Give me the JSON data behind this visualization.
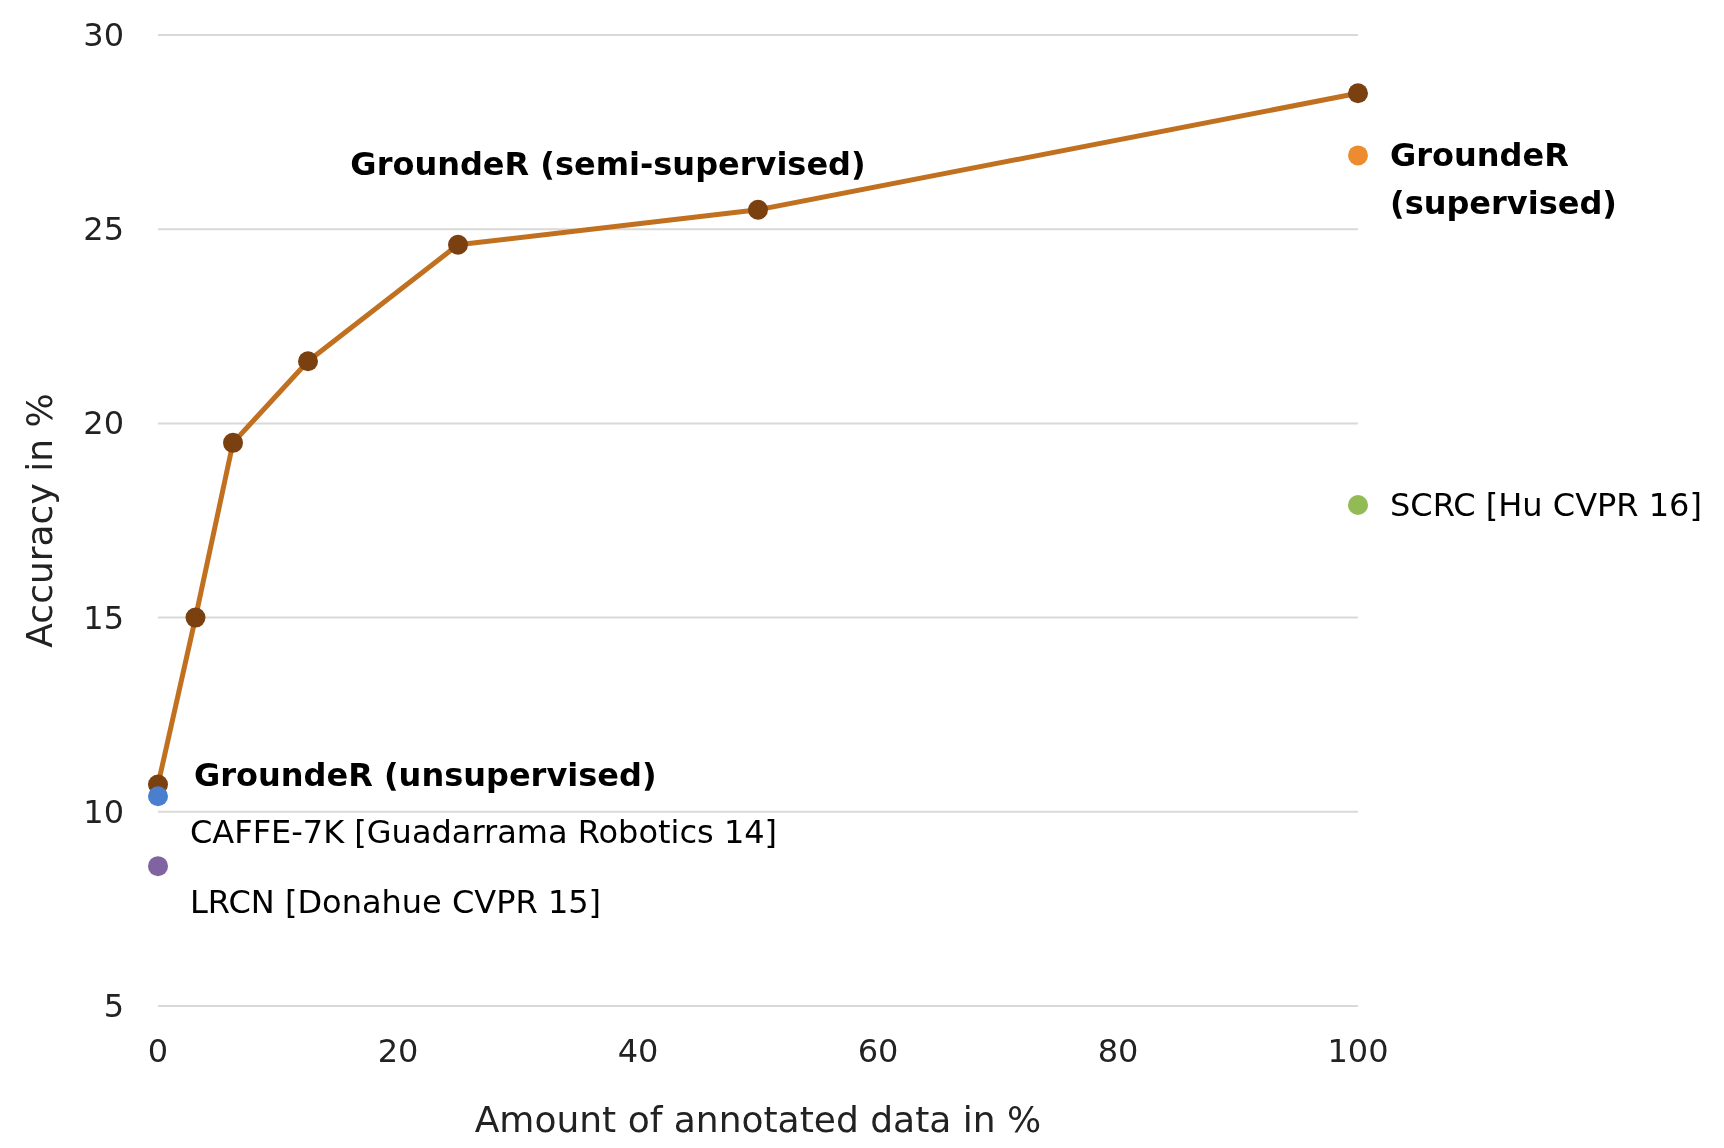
{
  "chart_data": {
    "type": "line",
    "xlabel": "Amount of annotated data in %",
    "ylabel": "Accuracy in %",
    "xlim": [
      0,
      100
    ],
    "ylim": [
      5,
      30
    ],
    "xticks": [
      0,
      20,
      40,
      60,
      80,
      100
    ],
    "yticks": [
      5,
      10,
      15,
      20,
      25,
      30
    ],
    "grid": "y",
    "marker": "circle",
    "line_style": "solid",
    "series": [
      {
        "name": "GroundeR (semi-supervised)",
        "color": "#c0701f",
        "colors": [
          "#7a4010",
          "#7a4010",
          "#7a4010",
          "#7a4010",
          "#7a4010",
          "#7a4010",
          "#7a4010"
        ],
        "x": [
          0,
          3.125,
          6.25,
          12.5,
          25,
          50,
          100
        ],
        "values": [
          10.7,
          15.0,
          19.5,
          21.6,
          24.6,
          25.5,
          28.5
        ]
      },
      {
        "type": "scatter",
        "name": "GroundeR (supervised)",
        "color": "#ed8b2f",
        "x": [
          100
        ],
        "values": [
          26.9
        ]
      },
      {
        "type": "scatter",
        "name": "SCRC [Hu CVPR 16]",
        "color": "#93bb55",
        "x": [
          100
        ],
        "values": [
          17.9
        ]
      },
      {
        "type": "scatter",
        "name": "CAFFE-7K [Guadarrama Robotics 14]",
        "color": "#4a7fcf",
        "x": [
          0
        ],
        "values": [
          10.4
        ]
      },
      {
        "type": "scatter",
        "name": "LRCN [Donahue CVPR 15]",
        "color": "#8064a2",
        "x": [
          0
        ],
        "values": [
          8.6
        ]
      }
    ],
    "annotations": [
      {
        "text": "GroundeR (unsupervised)",
        "x": 0,
        "y": 10.7
      }
    ]
  }
}
